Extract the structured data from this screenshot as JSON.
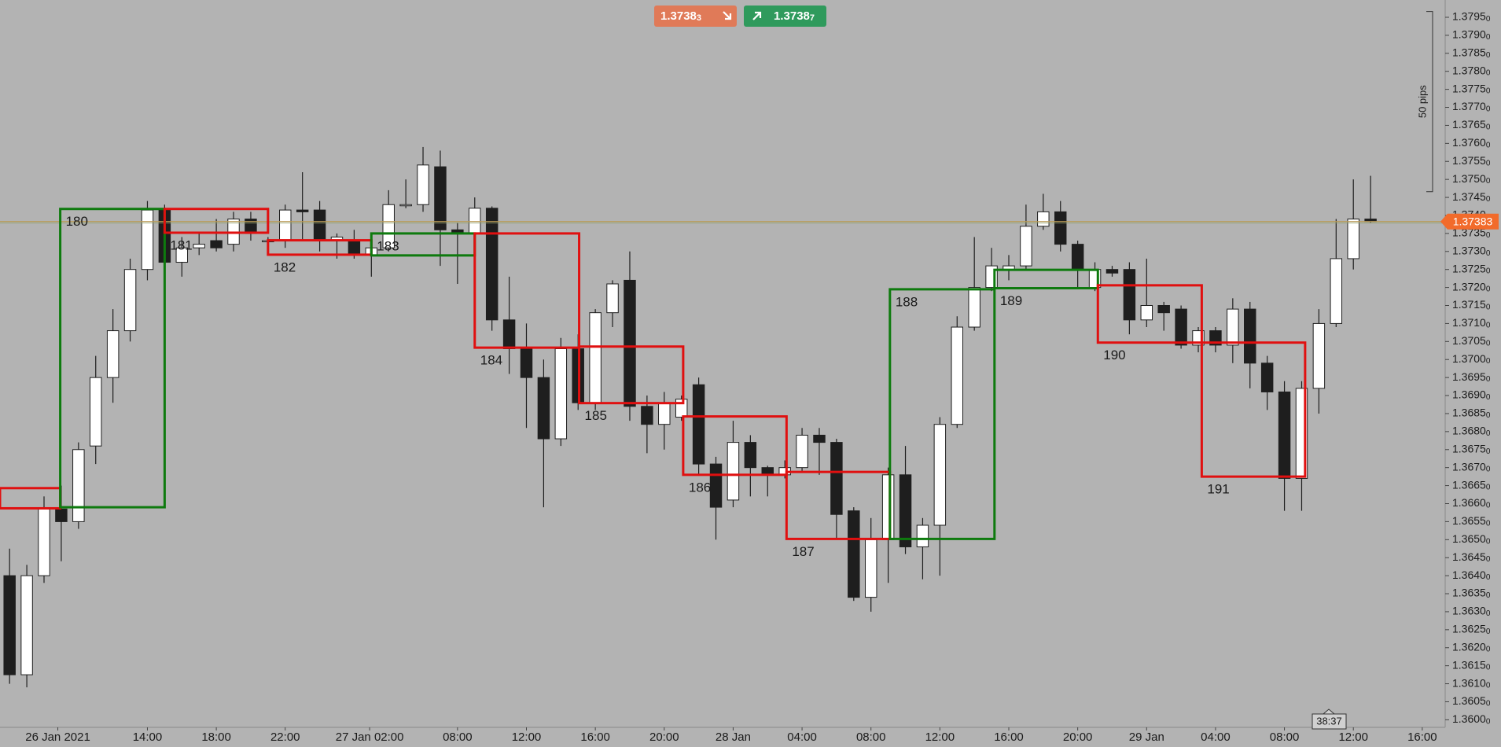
{
  "chart_data": {
    "type": "candlestick",
    "x": [
      0,
      1,
      2,
      3,
      4,
      5,
      6,
      7,
      8,
      9,
      10,
      11,
      12,
      13,
      14,
      15,
      16,
      17,
      18,
      19,
      20,
      21,
      22,
      23,
      24,
      25,
      26,
      27,
      28,
      29,
      30,
      31,
      32,
      33,
      34,
      35,
      36,
      37,
      38,
      39,
      40,
      41,
      42,
      43,
      44,
      45,
      46,
      47,
      48,
      49,
      50,
      51,
      52,
      53,
      54,
      55,
      56,
      57,
      58,
      59,
      60,
      61,
      62,
      63,
      64,
      65,
      66,
      67,
      68,
      69,
      70,
      71,
      72,
      73,
      74,
      75,
      76,
      77,
      78,
      79
    ],
    "open": [
      1.364,
      1.36125,
      1.364,
      1.36585,
      1.3655,
      1.3676,
      1.3695,
      1.3708,
      1.3725,
      1.37415,
      1.3727,
      1.3731,
      1.3733,
      1.3732,
      1.3739,
      1.3733,
      1.3733,
      1.37415,
      1.37415,
      1.3733,
      1.3733,
      1.3729,
      1.3731,
      1.3743,
      1.3743,
      1.37535,
      1.3736,
      1.3735,
      1.3742,
      1.3711,
      1.3703,
      1.3695,
      1.3678,
      1.3703,
      1.3688,
      1.3713,
      1.3722,
      1.3687,
      1.3682,
      1.3684,
      1.3693,
      1.3671,
      1.3661,
      1.3677,
      1.367,
      1.3668,
      1.367,
      1.3679,
      1.3677,
      1.3658,
      1.3634,
      1.365,
      1.3668,
      1.3648,
      1.3654,
      1.3682,
      1.3709,
      1.372,
      1.3725,
      1.3726,
      1.3737,
      1.3741,
      1.3732,
      1.372,
      1.3725,
      1.3725,
      1.3711,
      1.3715,
      1.3714,
      1.3704,
      1.3708,
      1.3704,
      1.3714,
      1.3699,
      1.3691,
      1.3667,
      1.3692,
      1.371,
      1.3728,
      1.3739
    ],
    "high": [
      1.36475,
      1.3643,
      1.3662,
      1.3665,
      1.3677,
      1.3701,
      1.3714,
      1.3728,
      1.3744,
      1.3743,
      1.3734,
      1.3735,
      1.3739,
      1.3741,
      1.3741,
      1.3734,
      1.3743,
      1.3752,
      1.3744,
      1.3735,
      1.3736,
      1.3735,
      1.3747,
      1.375,
      1.3759,
      1.3758,
      1.3738,
      1.3745,
      1.37425,
      1.3723,
      1.371,
      1.37,
      1.3706,
      1.3707,
      1.3714,
      1.3722,
      1.373,
      1.369,
      1.3691,
      1.369,
      1.3695,
      1.3673,
      1.3683,
      1.3679,
      1.36705,
      1.3672,
      1.3681,
      1.3681,
      1.3678,
      1.3659,
      1.3656,
      1.367,
      1.3676,
      1.3656,
      1.3684,
      1.3712,
      1.3734,
      1.3731,
      1.3729,
      1.3743,
      1.3746,
      1.3744,
      1.3733,
      1.3727,
      1.3726,
      1.3727,
      1.3728,
      1.3716,
      1.3715,
      1.3709,
      1.3709,
      1.3717,
      1.3716,
      1.3701,
      1.3694,
      1.3694,
      1.3714,
      1.3739,
      1.375,
      1.3751
    ],
    "low": [
      1.361,
      1.3609,
      1.3638,
      1.3644,
      1.3653,
      1.3671,
      1.3688,
      1.3705,
      1.3722,
      1.3725,
      1.3723,
      1.3729,
      1.373,
      1.373,
      1.3733,
      1.3732,
      1.3731,
      1.3733,
      1.373,
      1.3728,
      1.3728,
      1.3723,
      1.373,
      1.3742,
      1.3741,
      1.3726,
      1.3721,
      1.373,
      1.3708,
      1.3696,
      1.3681,
      1.3659,
      1.3676,
      1.3686,
      1.3686,
      1.3709,
      1.3683,
      1.3674,
      1.3675,
      1.3683,
      1.3668,
      1.365,
      1.3659,
      1.3662,
      1.3662,
      1.3667,
      1.3669,
      1.3668,
      1.365,
      1.3633,
      1.363,
      1.3638,
      1.3646,
      1.3639,
      1.364,
      1.3681,
      1.3708,
      1.3719,
      1.3722,
      1.3725,
      1.3736,
      1.373,
      1.372,
      1.3719,
      1.3723,
      1.3707,
      1.3709,
      1.3708,
      1.3703,
      1.3702,
      1.3702,
      1.3699,
      1.3692,
      1.3686,
      1.3658,
      1.3658,
      1.3685,
      1.3709,
      1.3725,
      1.3738
    ],
    "close": [
      1.36125,
      1.364,
      1.36585,
      1.3655,
      1.3675,
      1.3695,
      1.3708,
      1.3725,
      1.37415,
      1.3727,
      1.3731,
      1.3732,
      1.3731,
      1.3739,
      1.3735,
      1.3733,
      1.37415,
      1.3741,
      1.3733,
      1.3734,
      1.3729,
      1.3731,
      1.3743,
      1.3743,
      1.3754,
      1.3736,
      1.3735,
      1.3742,
      1.3711,
      1.3703,
      1.3695,
      1.3678,
      1.3703,
      1.3688,
      1.3713,
      1.3721,
      1.3687,
      1.3682,
      1.3688,
      1.3689,
      1.3671,
      1.3659,
      1.3677,
      1.367,
      1.3668,
      1.367,
      1.3679,
      1.3677,
      1.3657,
      1.3634,
      1.365,
      1.3668,
      1.3648,
      1.3654,
      1.3682,
      1.3709,
      1.372,
      1.3726,
      1.3726,
      1.3737,
      1.3741,
      1.3732,
      1.3725,
      1.3725,
      1.3724,
      1.3711,
      1.3715,
      1.3713,
      1.3704,
      1.3708,
      1.3704,
      1.3714,
      1.3699,
      1.3691,
      1.3667,
      1.3692,
      1.371,
      1.3728,
      1.3739,
      1.37383
    ],
    "up_color": "#ffffff",
    "down_color": "#1e1e1e",
    "xlim": [
      -0.556,
      83.33
    ],
    "xticks": [
      {
        "value": 2.8,
        "label": "26 Jan 2021"
      },
      {
        "value": 8,
        "label": "14:00"
      },
      {
        "value": 12,
        "label": "18:00"
      },
      {
        "value": 16,
        "label": "22:00"
      },
      {
        "value": 20.9,
        "label": "27 Jan 02:00"
      },
      {
        "value": 26,
        "label": "08:00"
      },
      {
        "value": 30,
        "label": "12:00"
      },
      {
        "value": 34,
        "label": "16:00"
      },
      {
        "value": 38,
        "label": "20:00"
      },
      {
        "value": 42,
        "label": "28 Jan"
      },
      {
        "value": 46,
        "label": "04:00"
      },
      {
        "value": 50,
        "label": "08:00"
      },
      {
        "value": 54,
        "label": "12:00"
      },
      {
        "value": 58,
        "label": "16:00"
      },
      {
        "value": 62,
        "label": "20:00"
      },
      {
        "value": 66,
        "label": "29 Jan"
      },
      {
        "value": 70,
        "label": "04:00"
      },
      {
        "value": 74,
        "label": "08:00"
      },
      {
        "value": 78,
        "label": "12:00"
      },
      {
        "value": 82,
        "label": "16:00"
      }
    ],
    "ylim": [
      1.35979,
      1.37998
    ],
    "yticks": [
      {
        "value": 1.36,
        "label": "1.36000"
      },
      {
        "value": 1.3605,
        "label": "1.36050"
      },
      {
        "value": 1.361,
        "label": "1.36100"
      },
      {
        "value": 1.3615,
        "label": "1.36150"
      },
      {
        "value": 1.362,
        "label": "1.36200"
      },
      {
        "value": 1.3625,
        "label": "1.36250"
      },
      {
        "value": 1.363,
        "label": "1.36300"
      },
      {
        "value": 1.3635,
        "label": "1.36350"
      },
      {
        "value": 1.364,
        "label": "1.36400"
      },
      {
        "value": 1.3645,
        "label": "1.36450"
      },
      {
        "value": 1.365,
        "label": "1.36500"
      },
      {
        "value": 1.3655,
        "label": "1.36550"
      },
      {
        "value": 1.366,
        "label": "1.36600"
      },
      {
        "value": 1.3665,
        "label": "1.36650"
      },
      {
        "value": 1.367,
        "label": "1.36700"
      },
      {
        "value": 1.3675,
        "label": "1.36750"
      },
      {
        "value": 1.368,
        "label": "1.36800"
      },
      {
        "value": 1.3685,
        "label": "1.36850"
      },
      {
        "value": 1.369,
        "label": "1.36900"
      },
      {
        "value": 1.3695,
        "label": "1.36950"
      },
      {
        "value": 1.37,
        "label": "1.37000"
      },
      {
        "value": 1.3705,
        "label": "1.37050"
      },
      {
        "value": 1.371,
        "label": "1.37100"
      },
      {
        "value": 1.3715,
        "label": "1.37150"
      },
      {
        "value": 1.372,
        "label": "1.37200"
      },
      {
        "value": 1.3725,
        "label": "1.37250"
      },
      {
        "value": 1.373,
        "label": "1.37300"
      },
      {
        "value": 1.3735,
        "label": "1.37350"
      },
      {
        "value": 1.374,
        "label": "1.37400"
      },
      {
        "value": 1.3745,
        "label": "1.37450"
      },
      {
        "value": 1.375,
        "label": "1.37500"
      },
      {
        "value": 1.3755,
        "label": "1.37550"
      },
      {
        "value": 1.376,
        "label": "1.37600"
      },
      {
        "value": 1.3765,
        "label": "1.37650"
      },
      {
        "value": 1.377,
        "label": "1.37700"
      },
      {
        "value": 1.3775,
        "label": "1.37750"
      },
      {
        "value": 1.378,
        "label": "1.37800"
      },
      {
        "value": 1.3785,
        "label": "1.37850"
      },
      {
        "value": 1.379,
        "label": "1.37900"
      },
      {
        "value": 1.3795,
        "label": "1.37950"
      }
    ],
    "grid": false,
    "boxes": [
      {
        "color": "#e01010",
        "x": [
          -0.556,
          2.94
        ],
        "y": [
          1.36587,
          1.36643
        ]
      },
      {
        "label": "180",
        "label_pos": "inside",
        "color": "#0e7a0e",
        "x": [
          2.94,
          9.0
        ],
        "y": [
          1.3659,
          1.37418
        ]
      },
      {
        "label": "181",
        "label_pos": "below",
        "color": "#e01010",
        "x": [
          9.0,
          15.0
        ],
        "y": [
          1.37352,
          1.37418
        ]
      },
      {
        "label": "182",
        "label_pos": "below",
        "color": "#e01010",
        "x": [
          15.0,
          21.0
        ],
        "y": [
          1.37291,
          1.37331
        ]
      },
      {
        "label": "183",
        "label_pos": "inside",
        "color": "#0e7a0e",
        "x": [
          21.0,
          27.0
        ],
        "y": [
          1.37289,
          1.3735
        ]
      },
      {
        "label": "184",
        "label_pos": "below",
        "color": "#e01010",
        "x": [
          27.0,
          33.06
        ],
        "y": [
          1.37033,
          1.3735
        ]
      },
      {
        "label": "185",
        "label_pos": "below",
        "color": "#e01010",
        "x": [
          33.06,
          39.1
        ],
        "y": [
          1.36879,
          1.37036
        ]
      },
      {
        "label": "186",
        "label_pos": "below",
        "color": "#e01010",
        "x": [
          39.1,
          45.1
        ],
        "y": [
          1.3668,
          1.36842
        ]
      },
      {
        "label": "187",
        "label_pos": "below",
        "color": "#e01010",
        "x": [
          45.1,
          51.1
        ],
        "y": [
          1.36502,
          1.36688
        ]
      },
      {
        "label": "188",
        "label_pos": "inside",
        "color": "#0e7a0e",
        "x": [
          51.1,
          57.17
        ],
        "y": [
          1.36502,
          1.37195
        ]
      },
      {
        "label": "189",
        "label_pos": "below",
        "color": "#0e7a0e",
        "x": [
          57.17,
          63.17
        ],
        "y": [
          1.37198,
          1.37249
        ]
      },
      {
        "label": "190",
        "label_pos": "below",
        "color": "#e01010",
        "x": [
          63.17,
          69.2
        ],
        "y": [
          1.37047,
          1.37206
        ]
      },
      {
        "label": "191",
        "label_pos": "below",
        "color": "#e01010",
        "x": [
          69.2,
          75.2
        ],
        "y": [
          1.36675,
          1.37047
        ]
      }
    ],
    "last_price": 1.37383,
    "last_price_color": "#f26b2b",
    "sell_price": 1.37383,
    "buy_price": 1.37387,
    "pips_label": "50 pips",
    "pips_range": [
      1.37466,
      1.37966
    ],
    "timer": "38:37"
  }
}
